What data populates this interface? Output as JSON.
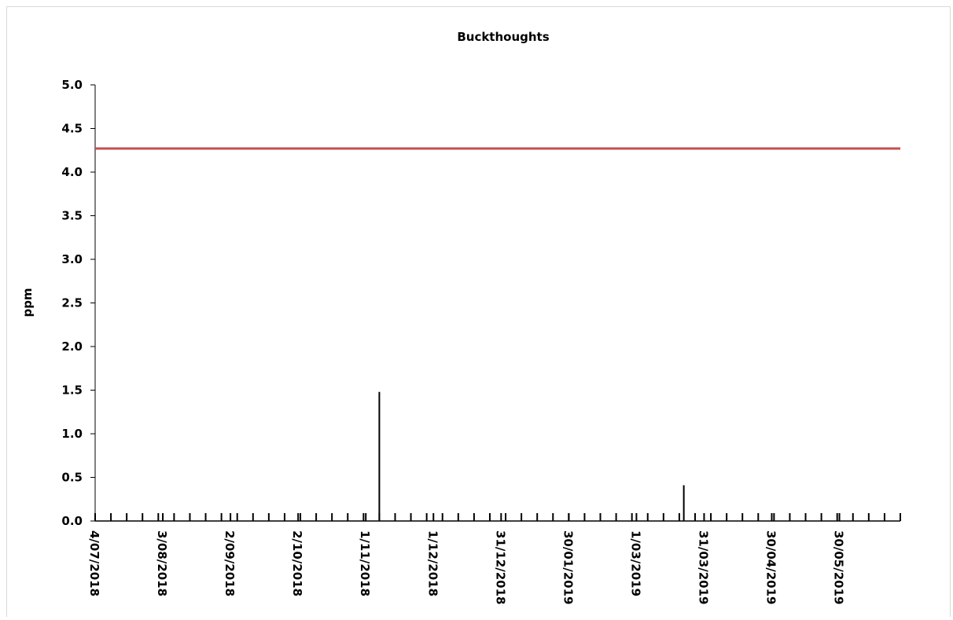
{
  "chart_data": {
    "type": "bar",
    "title": "Buckthoughts",
    "y_label": "ppm",
    "x": [
      "2018-11-07",
      "2019-03-22"
    ],
    "values": [
      1.48,
      0.41
    ],
    "color": "#000000",
    "xlim": [
      "2018-07-04",
      "2019-06-26"
    ],
    "xticks": [
      {
        "value": "2018-07-04",
        "label": "4/07/2018"
      },
      {
        "value": "2018-08-03",
        "label": "3/08/2018"
      },
      {
        "value": "2018-09-02",
        "label": "2/09/2018"
      },
      {
        "value": "2018-10-02",
        "label": "2/10/2018"
      },
      {
        "value": "2018-11-01",
        "label": "1/11/2018"
      },
      {
        "value": "2018-12-01",
        "label": "1/12/2018"
      },
      {
        "value": "2018-12-31",
        "label": "31/12/2018"
      },
      {
        "value": "2019-01-30",
        "label": "30/01/2019"
      },
      {
        "value": "2019-03-01",
        "label": "1/03/2019"
      },
      {
        "value": "2019-03-31",
        "label": "31/03/2019"
      },
      {
        "value": "2019-04-30",
        "label": "30/04/2019"
      },
      {
        "value": "2019-05-30",
        "label": "30/05/2019"
      }
    ],
    "x_minor_interval_days": 7,
    "ylim": [
      0,
      5
    ],
    "yticks": [
      {
        "value": 0,
        "label": "0.0"
      },
      0.5,
      {
        "value": 1,
        "label": "1.0"
      },
      1.5,
      {
        "value": 2,
        "label": "2.0"
      },
      2.5,
      {
        "value": 3,
        "label": "3.0"
      },
      3.5,
      {
        "value": 4,
        "label": "4.0"
      },
      4.5,
      {
        "value": 5,
        "label": "5.0"
      }
    ],
    "reference_lines": [
      {
        "value": 4.27,
        "color": "#c0504d"
      }
    ]
  }
}
